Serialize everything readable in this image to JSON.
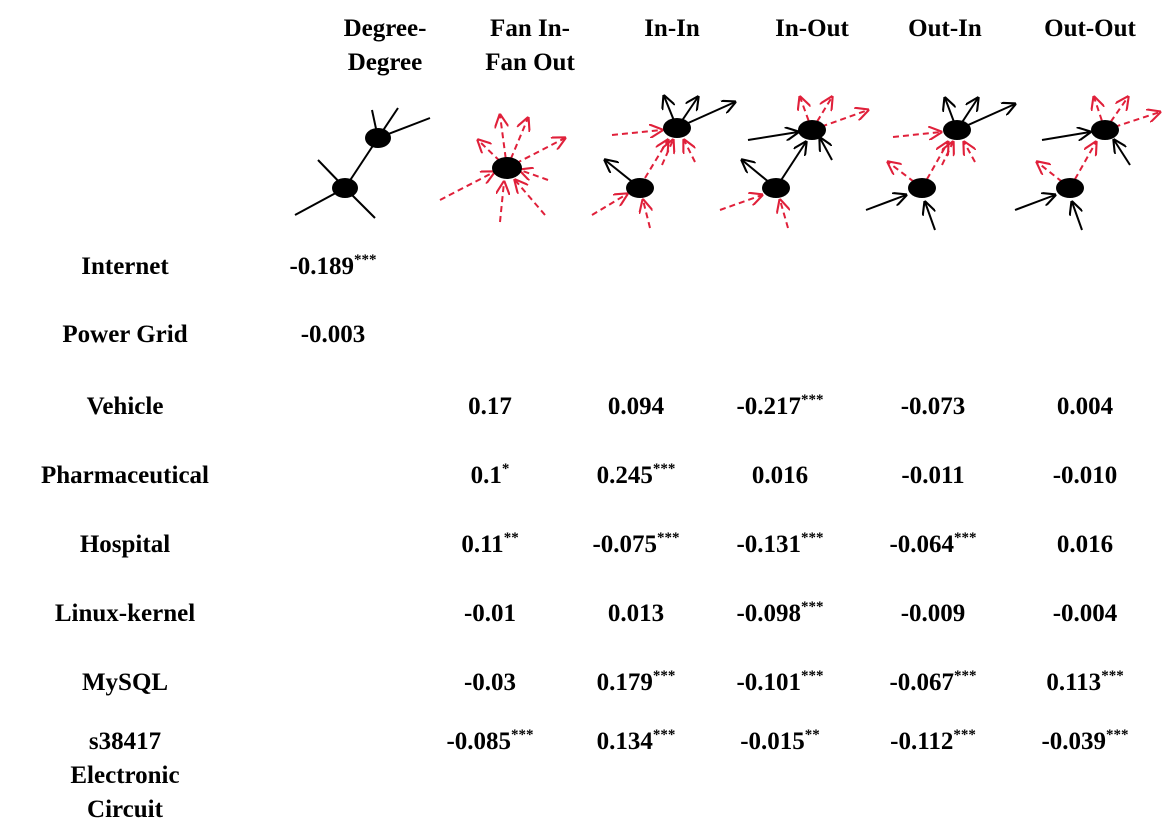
{
  "header": {
    "columns": [
      [
        "Degree-",
        "Degree"
      ],
      [
        "Fan In-",
        "Fan Out"
      ],
      [
        "In-In"
      ],
      [
        "In-Out"
      ],
      [
        "Out-In"
      ],
      [
        "Out-Out"
      ]
    ]
  },
  "rows": [
    {
      "label": [
        "Internet"
      ],
      "cells": [
        {
          "value": "-0.189",
          "stars": "***"
        },
        null,
        null,
        null,
        null,
        null
      ]
    },
    {
      "label": [
        "Power Grid"
      ],
      "cells": [
        {
          "value": "-0.003"
        },
        null,
        null,
        null,
        null,
        null
      ]
    },
    {
      "label": [
        "Vehicle"
      ],
      "cells": [
        null,
        {
          "value": "0.17"
        },
        {
          "value": "0.094"
        },
        {
          "value": "-0.217",
          "stars": "***"
        },
        {
          "value": "-0.073"
        },
        {
          "value": "0.004"
        }
      ]
    },
    {
      "label": [
        "Pharmaceutical"
      ],
      "cells": [
        null,
        {
          "value": "0.1",
          "stars": "*"
        },
        {
          "value": "0.245",
          "stars": "***"
        },
        {
          "value": "0.016"
        },
        {
          "value": "-0.011"
        },
        {
          "value": "-0.010"
        }
      ]
    },
    {
      "label": [
        "Hospital"
      ],
      "cells": [
        null,
        {
          "value": "0.11",
          "stars": "**"
        },
        {
          "value": "-0.075",
          "stars": "***"
        },
        {
          "value": "-0.131",
          "stars": "***"
        },
        {
          "value": "-0.064",
          "stars": "***"
        },
        {
          "value": "0.016"
        }
      ]
    },
    {
      "label": [
        "Linux-kernel"
      ],
      "cells": [
        null,
        {
          "value": "-0.01"
        },
        {
          "value": "0.013"
        },
        {
          "value": "-0.098",
          "stars": "***"
        },
        {
          "value": "-0.009"
        },
        {
          "value": "-0.004"
        }
      ]
    },
    {
      "label": [
        "MySQL"
      ],
      "cells": [
        null,
        {
          "value": "-0.03"
        },
        {
          "value": "0.179",
          "stars": "***"
        },
        {
          "value": "-0.101",
          "stars": "***"
        },
        {
          "value": "-0.067",
          "stars": "***"
        },
        {
          "value": "0.113",
          "stars": "***"
        }
      ]
    },
    {
      "label": [
        "s38417",
        "Electronic",
        "Circuit"
      ],
      "cells": [
        null,
        {
          "value": "-0.085",
          "stars": "***"
        },
        {
          "value": "0.134",
          "stars": "***"
        },
        {
          "value": "-0.015",
          "stars": "**"
        },
        {
          "value": "-0.112",
          "stars": "***"
        },
        {
          "value": "-0.039",
          "stars": "***"
        }
      ]
    }
  ]
}
